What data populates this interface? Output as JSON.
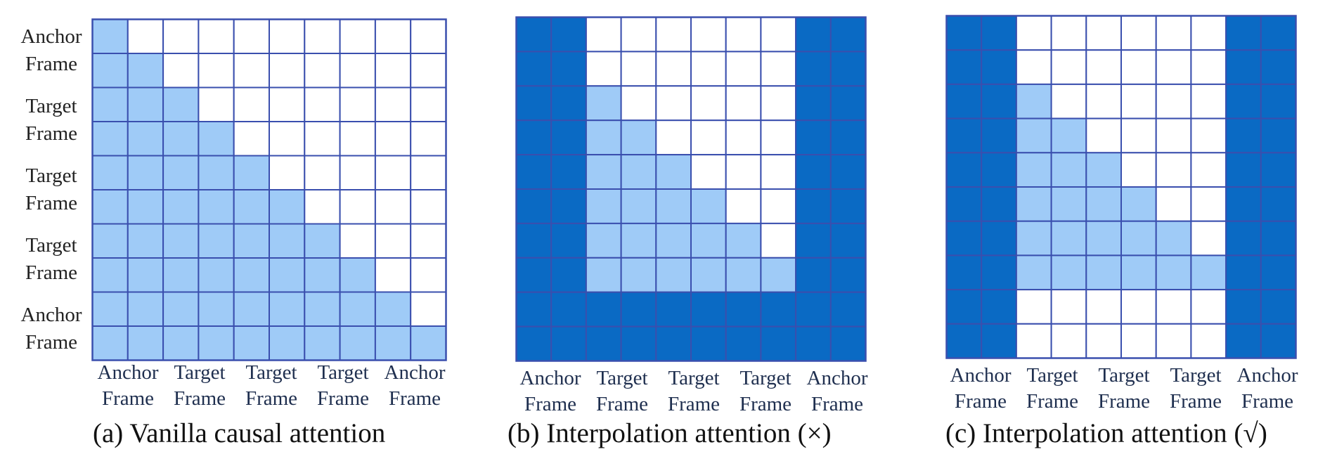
{
  "colors": {
    "blank": "#ffffff",
    "light": "#9fcbf7",
    "dark": "#0a6ac4",
    "grid_line": "#3a4fae"
  },
  "panels": [
    {
      "id": "a",
      "caption": "(a) Vanilla causal attention",
      "row_labels": [
        {
          "line1": "Anchor",
          "line2": "Frame"
        },
        {
          "line1": "Target",
          "line2": "Frame"
        },
        {
          "line1": "Target",
          "line2": "Frame"
        },
        {
          "line1": "Target",
          "line2": "Frame"
        },
        {
          "line1": "Anchor",
          "line2": "Frame"
        }
      ],
      "col_labels": [
        {
          "line1": "Anchor",
          "line2": "Frame"
        },
        {
          "line1": "Target",
          "line2": "Frame"
        },
        {
          "line1": "Target",
          "line2": "Frame"
        },
        {
          "line1": "Target",
          "line2": "Frame"
        },
        {
          "line1": "Anchor",
          "line2": "Frame"
        }
      ],
      "mask": [
        "L.........",
        "LL........",
        "LLL.......",
        "LLLL......",
        "LLLLL.....",
        "LLLLLL....",
        "LLLLLLL...",
        "LLLLLLLL..",
        "LLLLLLLLL.",
        "LLLLLLLLLL"
      ]
    },
    {
      "id": "b",
      "caption": "(b) Interpolation attention (×)",
      "row_labels": [],
      "col_labels": [
        {
          "line1": "Anchor",
          "line2": "Frame"
        },
        {
          "line1": "Target",
          "line2": "Frame"
        },
        {
          "line1": "Target",
          "line2": "Frame"
        },
        {
          "line1": "Target",
          "line2": "Frame"
        },
        {
          "line1": "Anchor",
          "line2": "Frame"
        }
      ],
      "mask": [
        "DD......DD",
        "DD......DD",
        "DDL.....DD",
        "DDLL....DD",
        "DDLLL...DD",
        "DDLLLL..DD",
        "DDLLLLL.DD",
        "DDLLLLLLDD",
        "DDDDDDDDDD",
        "DDDDDDDDDD"
      ]
    },
    {
      "id": "c",
      "caption": "(c) Interpolation attention (√)",
      "row_labels": [],
      "col_labels": [
        {
          "line1": "Anchor",
          "line2": "Frame"
        },
        {
          "line1": "Target",
          "line2": "Frame"
        },
        {
          "line1": "Target",
          "line2": "Frame"
        },
        {
          "line1": "Target",
          "line2": "Frame"
        },
        {
          "line1": "Anchor",
          "line2": "Frame"
        }
      ],
      "mask": [
        "DD......DD",
        "DD......DD",
        "DDL.....DD",
        "DDLL....DD",
        "DDLLL...DD",
        "DDLLLL..DD",
        "DDLLLLL.DD",
        "DDLLLLLLDD",
        "DD......DD",
        "DD......DD"
      ]
    }
  ]
}
